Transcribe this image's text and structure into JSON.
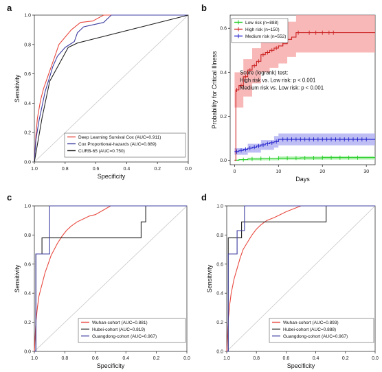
{
  "chart_data": [
    {
      "panel": "a",
      "type": "line",
      "xlabel": "Specificity",
      "ylabel": "Sensitivity",
      "xlim": [
        1.0,
        0.0
      ],
      "ylim": [
        0.0,
        1.0
      ],
      "xticks": [
        "1.0",
        "0.8",
        "0.6",
        "0.4",
        "0.2",
        "0.0"
      ],
      "yticks": [
        "0.0",
        "0.2",
        "0.4",
        "0.6",
        "0.8",
        "1.0"
      ],
      "legend_position": "bottom-right",
      "series": [
        {
          "name": "Deep Learning Survival Cox (AUC=0.911)",
          "color": "#e8483e",
          "points": [
            [
              1.0,
              0.0
            ],
            [
              0.99,
              0.18
            ],
            [
              0.98,
              0.3
            ],
            [
              0.96,
              0.42
            ],
            [
              0.94,
              0.5
            ],
            [
              0.92,
              0.56
            ],
            [
              0.9,
              0.62
            ],
            [
              0.88,
              0.68
            ],
            [
              0.86,
              0.74
            ],
            [
              0.84,
              0.8
            ],
            [
              0.8,
              0.85
            ],
            [
              0.76,
              0.9
            ],
            [
              0.7,
              0.95
            ],
            [
              0.62,
              0.96
            ],
            [
              0.55,
              1.0
            ],
            [
              0.0,
              1.0
            ]
          ]
        },
        {
          "name": "Cox Proportional-hazards (AUC=0.889)",
          "color": "#3c3ca0",
          "points": [
            [
              1.0,
              0.0
            ],
            [
              0.99,
              0.15
            ],
            [
              0.97,
              0.28
            ],
            [
              0.95,
              0.38
            ],
            [
              0.93,
              0.48
            ],
            [
              0.9,
              0.58
            ],
            [
              0.88,
              0.65
            ],
            [
              0.85,
              0.72
            ],
            [
              0.8,
              0.78
            ],
            [
              0.74,
              0.82
            ],
            [
              0.72,
              0.88
            ],
            [
              0.68,
              0.92
            ],
            [
              0.55,
              0.95
            ],
            [
              0.5,
              1.0
            ],
            [
              0.0,
              1.0
            ]
          ]
        },
        {
          "name": "CURB-65 (AUC=0.750)",
          "color": "#222222",
          "points": [
            [
              1.0,
              0.0
            ],
            [
              0.95,
              0.3
            ],
            [
              0.9,
              0.55
            ],
            [
              0.78,
              0.78
            ],
            [
              0.72,
              0.81
            ],
            [
              0.0,
              1.0
            ]
          ]
        }
      ]
    },
    {
      "panel": "b",
      "type": "line",
      "xlabel": "Days",
      "ylabel": "Probability for Critical Illness",
      "xlim": [
        -1,
        32
      ],
      "ylim": [
        -0.02,
        0.66
      ],
      "xticks": [
        "0",
        "10",
        "20",
        "30"
      ],
      "yticks": [
        "0.0",
        "0.2",
        "0.4",
        "0.6"
      ],
      "legend_position": "top-left",
      "annotation": [
        "Score (logrank) test:",
        "High risk vs. Low risk: p < 0.001",
        "Medium risk vs. Low risk: p < 0.001"
      ],
      "series": [
        {
          "name": "Low risk (n=888)",
          "color": "#22cc22",
          "band_color": "#a6f0a6",
          "points": [
            [
              0,
              0.0
            ],
            [
              1,
              0.003
            ],
            [
              3,
              0.006
            ],
            [
              6,
              0.008
            ],
            [
              10,
              0.01
            ],
            [
              15,
              0.011
            ],
            [
              20,
              0.012
            ],
            [
              25,
              0.012
            ],
            [
              32,
              0.012
            ]
          ],
          "band": [
            [
              0,
              0.0,
              0.004
            ],
            [
              3,
              0.0,
              0.012
            ],
            [
              10,
              0.002,
              0.018
            ],
            [
              20,
              0.003,
              0.02
            ],
            [
              32,
              0.003,
              0.02
            ]
          ],
          "censor_x": [
            2,
            4,
            6,
            8,
            10,
            12,
            14,
            16,
            18,
            20,
            22,
            24,
            26,
            28
          ]
        },
        {
          "name": "High risk (n=150)",
          "color": "#cc2222",
          "band_color": "#f5a0a0",
          "points": [
            [
              0,
              0.0
            ],
            [
              0.3,
              0.32
            ],
            [
              1,
              0.34
            ],
            [
              2,
              0.38
            ],
            [
              3,
              0.41
            ],
            [
              4,
              0.43
            ],
            [
              5,
              0.45
            ],
            [
              6,
              0.48
            ],
            [
              7,
              0.49
            ],
            [
              8,
              0.5
            ],
            [
              9,
              0.51
            ],
            [
              10,
              0.52
            ],
            [
              11,
              0.53
            ],
            [
              12,
              0.55
            ],
            [
              13,
              0.56
            ],
            [
              14,
              0.58
            ],
            [
              32,
              0.58
            ]
          ],
          "band": [
            [
              0,
              0.24,
              0.4
            ],
            [
              2,
              0.29,
              0.46
            ],
            [
              4,
              0.35,
              0.51
            ],
            [
              6,
              0.4,
              0.56
            ],
            [
              8,
              0.42,
              0.58
            ],
            [
              10,
              0.44,
              0.6
            ],
            [
              12,
              0.47,
              0.63
            ],
            [
              14,
              0.49,
              0.66
            ],
            [
              32,
              0.49,
              0.66
            ]
          ],
          "censor_x": [
            0.5,
            1.5,
            2.5,
            3.5,
            4.5,
            5.5,
            6.5,
            7.5,
            8.5,
            9.5,
            11,
            14.5,
            17,
            18.5,
            20,
            21.5,
            22.5
          ]
        },
        {
          "name": "Medium risk (n=552)",
          "color": "#2222cc",
          "band_color": "#a8a8f2",
          "points": [
            [
              0,
              0.04
            ],
            [
              1,
              0.045
            ],
            [
              2,
              0.05
            ],
            [
              3,
              0.055
            ],
            [
              4,
              0.06
            ],
            [
              5,
              0.065
            ],
            [
              6,
              0.07
            ],
            [
              7,
              0.075
            ],
            [
              8,
              0.08
            ],
            [
              9,
              0.085
            ],
            [
              10,
              0.095
            ],
            [
              32,
              0.095
            ]
          ],
          "band": [
            [
              0,
              0.025,
              0.055
            ],
            [
              3,
              0.035,
              0.075
            ],
            [
              6,
              0.048,
              0.092
            ],
            [
              9,
              0.058,
              0.11
            ],
            [
              10,
              0.068,
              0.122
            ],
            [
              32,
              0.068,
              0.122
            ]
          ],
          "censor_x": [
            0.5,
            1.5,
            2.5,
            3.5,
            4.5,
            5.5,
            6.5,
            7.5,
            8.5,
            9.5,
            11,
            12,
            13,
            14,
            15,
            16,
            17,
            18,
            19,
            20,
            21,
            22,
            23,
            24,
            25,
            26,
            27,
            28,
            29,
            30
          ]
        }
      ]
    },
    {
      "panel": "c",
      "type": "line",
      "xlabel": "Specificity",
      "ylabel": "Sensitivity",
      "xlim": [
        1.0,
        0.0
      ],
      "ylim": [
        0.0,
        1.0
      ],
      "xticks": [
        "1.0",
        "0.8",
        "0.6",
        "0.4",
        "0.2",
        "0.0"
      ],
      "yticks": [
        "0.0",
        "0.2",
        "0.4",
        "0.6",
        "0.8",
        "1.0"
      ],
      "legend_position": "bottom-right",
      "series": [
        {
          "name": "Wuhan-cohort (AUC=0.881)",
          "color": "#e8483e",
          "points": [
            [
              1.0,
              0.0
            ],
            [
              0.99,
              0.2
            ],
            [
              0.98,
              0.3
            ],
            [
              0.97,
              0.38
            ],
            [
              0.95,
              0.46
            ],
            [
              0.93,
              0.54
            ],
            [
              0.91,
              0.6
            ],
            [
              0.89,
              0.66
            ],
            [
              0.87,
              0.7
            ],
            [
              0.85,
              0.74
            ],
            [
              0.82,
              0.79
            ],
            [
              0.79,
              0.83
            ],
            [
              0.76,
              0.86
            ],
            [
              0.72,
              0.89
            ],
            [
              0.68,
              0.91
            ],
            [
              0.64,
              0.93
            ],
            [
              0.6,
              0.94
            ],
            [
              0.55,
              0.97
            ],
            [
              0.5,
              1.0
            ],
            [
              0.0,
              1.0
            ]
          ]
        },
        {
          "name": "Hubei-cohort (AUC=0.819)",
          "color": "#222222",
          "points": [
            [
              1.0,
              0.0
            ],
            [
              0.99,
              0.0
            ],
            [
              0.99,
              0.67
            ],
            [
              0.95,
              0.67
            ],
            [
              0.95,
              0.78
            ],
            [
              0.3,
              0.78
            ],
            [
              0.3,
              0.89
            ],
            [
              0.27,
              0.89
            ],
            [
              0.27,
              1.0
            ],
            [
              0.0,
              1.0
            ]
          ]
        },
        {
          "name": "Guangdong-cohort (AUC=0.967)",
          "color": "#3c3ca0",
          "points": [
            [
              1.0,
              0.0
            ],
            [
              0.99,
              0.0
            ],
            [
              0.99,
              0.67
            ],
            [
              0.9,
              0.67
            ],
            [
              0.9,
              1.0
            ],
            [
              0.0,
              1.0
            ]
          ]
        }
      ]
    },
    {
      "panel": "d",
      "type": "line",
      "xlabel": "Specificity",
      "ylabel": "Sensitivity",
      "xlim": [
        1.0,
        0.0
      ],
      "ylim": [
        0.0,
        1.0
      ],
      "xticks": [
        "1.0",
        "0.8",
        "0.6",
        "0.4",
        "0.2",
        "0.0"
      ],
      "yticks": [
        "0.0",
        "0.2",
        "0.4",
        "0.6",
        "0.8",
        "1.0"
      ],
      "legend_position": "bottom-right",
      "series": [
        {
          "name": "Wuhan-cohort (AUC=0.893)",
          "color": "#e8483e",
          "points": [
            [
              1.0,
              0.0
            ],
            [
              0.99,
              0.22
            ],
            [
              0.98,
              0.32
            ],
            [
              0.97,
              0.4
            ],
            [
              0.95,
              0.5
            ],
            [
              0.93,
              0.57
            ],
            [
              0.91,
              0.64
            ],
            [
              0.89,
              0.7
            ],
            [
              0.86,
              0.75
            ],
            [
              0.83,
              0.8
            ],
            [
              0.8,
              0.84
            ],
            [
              0.77,
              0.87
            ],
            [
              0.73,
              0.9
            ],
            [
              0.68,
              0.92
            ],
            [
              0.64,
              0.94
            ],
            [
              0.6,
              0.96
            ],
            [
              0.55,
              0.98
            ],
            [
              0.5,
              1.0
            ],
            [
              0.0,
              1.0
            ]
          ]
        },
        {
          "name": "Hubei-cohort (AUC=0.888)",
          "color": "#222222",
          "points": [
            [
              1.0,
              0.0
            ],
            [
              0.99,
              0.0
            ],
            [
              0.99,
              0.78
            ],
            [
              0.9,
              0.78
            ],
            [
              0.9,
              0.89
            ],
            [
              0.33,
              0.89
            ],
            [
              0.33,
              1.0
            ],
            [
              0.0,
              1.0
            ]
          ]
        },
        {
          "name": "Guangdong-cohort (AUC=0.967)",
          "color": "#3c3ca0",
          "points": [
            [
              1.0,
              0.0
            ],
            [
              0.99,
              0.0
            ],
            [
              0.99,
              0.67
            ],
            [
              0.93,
              0.67
            ],
            [
              0.93,
              0.83
            ],
            [
              0.88,
              0.83
            ],
            [
              0.88,
              1.0
            ],
            [
              0.0,
              1.0
            ]
          ]
        }
      ]
    }
  ]
}
